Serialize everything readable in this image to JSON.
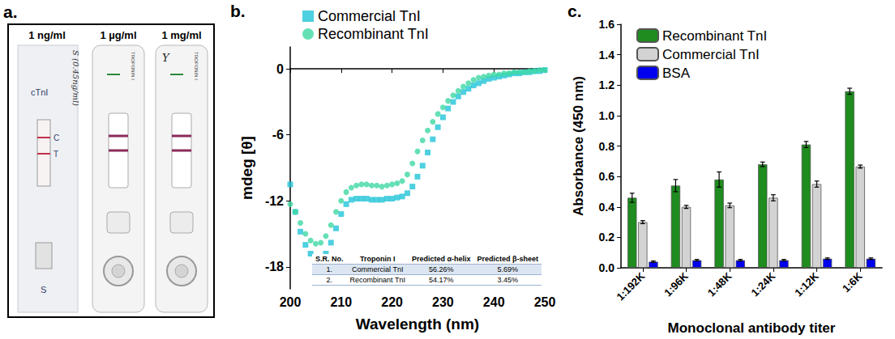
{
  "panel_a": {
    "title": "a.",
    "strips": [
      {
        "concentration": "1 ng/ml",
        "marks": [
          "cTnI",
          "C",
          "T",
          "S"
        ],
        "handwriting": "S (0.45ng/ml)"
      },
      {
        "concentration": "1 µg/ml",
        "print": "TROPONIN I"
      },
      {
        "concentration": "1 mg/ml",
        "print": "TROPONIN I",
        "handwriting": "Y"
      }
    ]
  },
  "chart_data": [
    {
      "type": "scatter",
      "title": "b.",
      "x_label": "Wavelength (nm)",
      "y_label": "mdeg [θ]",
      "x": [
        200,
        201,
        202,
        203,
        204,
        205,
        206,
        207,
        208,
        209,
        210,
        211,
        212,
        213,
        214,
        215,
        216,
        217,
        218,
        219,
        220,
        221,
        222,
        223,
        224,
        225,
        226,
        227,
        228,
        229,
        230,
        231,
        232,
        233,
        234,
        235,
        236,
        237,
        238,
        239,
        240,
        241,
        242,
        243,
        244,
        245,
        246,
        247,
        248,
        249,
        250
      ],
      "series": [
        {
          "name": "Commercial TnI",
          "color": "#22c4d8",
          "marker": "square",
          "values": [
            -10.5,
            -13,
            -14.8,
            -16,
            -16.8,
            -17.2,
            -17.2,
            -16.8,
            -15.8,
            -14.5,
            -13.2,
            -12.3,
            -11.9,
            -11.8,
            -11.8,
            -11.8,
            -11.9,
            -11.9,
            -11.9,
            -11.8,
            -11.8,
            -11.7,
            -11.6,
            -11.3,
            -10.7,
            -9.8,
            -8.8,
            -7.6,
            -6.4,
            -5.3,
            -4.4,
            -3.6,
            -3.0,
            -2.5,
            -2.1,
            -1.8,
            -1.5,
            -1.3,
            -1.1,
            -0.9,
            -0.8,
            -0.7,
            -0.6,
            -0.5,
            -0.4,
            -0.4,
            -0.3,
            -0.3,
            -0.2,
            -0.2,
            -0.1
          ]
        },
        {
          "name": "Recombinant TnI",
          "color": "#3ed8a2",
          "marker": "circle",
          "values": [
            -12.3,
            -13,
            -14,
            -15,
            -15.6,
            -15.9,
            -15.8,
            -15.2,
            -14.2,
            -13,
            -12,
            -11.2,
            -10.8,
            -10.6,
            -10.5,
            -10.5,
            -10.6,
            -10.6,
            -10.7,
            -10.6,
            -10.5,
            -10.4,
            -10.2,
            -9.6,
            -8.6,
            -7.5,
            -6.5,
            -5.6,
            -4.8,
            -4.1,
            -3.5,
            -2.9,
            -2.4,
            -2.0,
            -1.6,
            -1.3,
            -1.0,
            -0.8,
            -0.7,
            -0.6,
            -0.5,
            -0.5,
            -0.4,
            -0.4,
            -0.3,
            -0.3,
            -0.3,
            -0.2,
            -0.2,
            -0.1,
            -0.1
          ]
        }
      ],
      "xlim": [
        200,
        250
      ],
      "xticks": [
        200,
        210,
        220,
        230,
        240,
        250
      ],
      "ylim": [
        -20,
        2
      ],
      "yticks": [
        -18,
        -12,
        -6,
        0
      ],
      "grid": false,
      "legend": "top",
      "table": {
        "columns": [
          "S.R. No.",
          "Troponin I",
          "Predicted α-helix",
          "Predicted β-sheet"
        ],
        "rows": [
          [
            "1.",
            "Commercial TnI",
            "56.26%",
            "5.69%"
          ],
          [
            "2.",
            "Recombinant TnI",
            "54.17%",
            "3.45%"
          ]
        ]
      }
    },
    {
      "type": "bar",
      "title": "c.",
      "x_label": "Monoclonal antibody titer",
      "y_label": "Absorbance (450 nm)",
      "categories": [
        "1:192K",
        "1:96K",
        "1:48K",
        "1:24K",
        "1:12K",
        "1:6K"
      ],
      "series": [
        {
          "name": "Recombinant TnI",
          "color": "#1e8c1e",
          "values": [
            0.46,
            0.54,
            0.58,
            0.68,
            0.81,
            1.16
          ],
          "errors": [
            0.03,
            0.04,
            0.05,
            0.015,
            0.02,
            0.02
          ]
        },
        {
          "name": "Commercial TnI",
          "color": "#d3d3d3",
          "values": [
            0.3,
            0.4,
            0.41,
            0.46,
            0.55,
            0.665
          ],
          "errors": [
            0.01,
            0.01,
            0.015,
            0.02,
            0.02,
            0.01
          ]
        },
        {
          "name": "BSA",
          "color": "#0000ee",
          "values": [
            0.04,
            0.05,
            0.05,
            0.05,
            0.06,
            0.06
          ],
          "errors": [
            0.005,
            0.005,
            0.005,
            0.005,
            0.005,
            0.005
          ]
        }
      ],
      "ylim": [
        0,
        1.6
      ],
      "yticks": [
        {
          "value": 0,
          "label": "0.0"
        },
        0.2,
        0.4,
        0.6,
        0.8,
        {
          "value": 1,
          "label": "1.0"
        },
        1.2,
        1.4,
        1.6
      ],
      "grid": false,
      "legend": "top-left"
    }
  ]
}
